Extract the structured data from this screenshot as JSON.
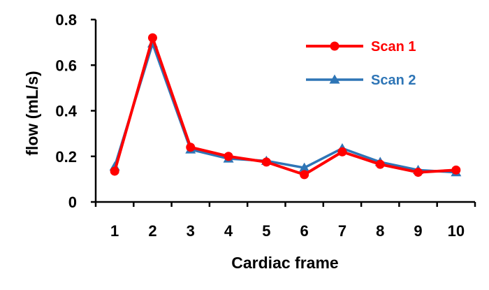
{
  "chart_data": {
    "type": "line",
    "xlabel": "Cardiac frame",
    "ylabel": "flow (mL/s)",
    "x": [
      "1",
      "2",
      "3",
      "4",
      "5",
      "6",
      "7",
      "8",
      "9",
      "10"
    ],
    "ylim": [
      0,
      0.8
    ],
    "yticks": [
      "0",
      "0.2",
      "0.4",
      "0.6",
      "0.8"
    ],
    "grid": false,
    "legend_position": "top-right",
    "series": [
      {
        "name": "Scan 1",
        "color": "#ff0000",
        "marker": "circle",
        "values": [
          0.135,
          0.72,
          0.24,
          0.2,
          0.175,
          0.12,
          0.22,
          0.165,
          0.13,
          0.14
        ]
      },
      {
        "name": "Scan 2",
        "color": "#2e75b6",
        "marker": "triangle",
        "values": [
          0.155,
          0.695,
          0.23,
          0.19,
          0.18,
          0.15,
          0.235,
          0.175,
          0.14,
          0.13
        ]
      }
    ]
  }
}
